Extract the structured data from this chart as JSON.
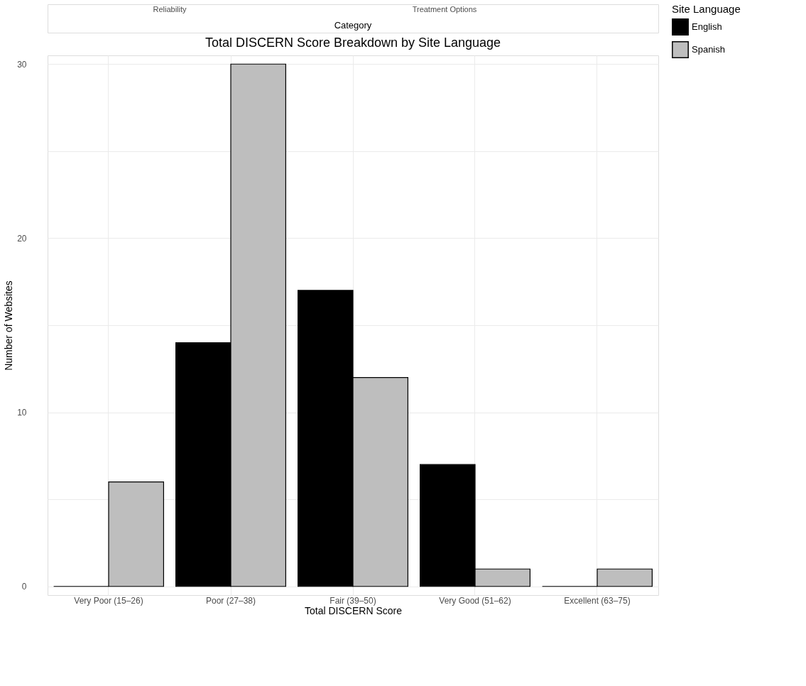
{
  "chart_data": {
    "type": "bar",
    "title": "Total DISCERN Score Breakdown by Site Language",
    "xlabel": "Total DISCERN Score",
    "ylabel": "Number of Websites",
    "legend_title": "Site Language",
    "annotations": [
      "Reliability",
      "Treatment Options",
      "Category"
    ],
    "categories": [
      "Very Poor (15–26)",
      "Poor (27–38)",
      "Fair (39–50)",
      "Very Good (51–62)",
      "Excellent (63–75)"
    ],
    "series": [
      {
        "name": "English",
        "color": "#000000",
        "values": [
          0,
          14,
          17,
          7,
          0
        ]
      },
      {
        "name": "Spanish",
        "color": "#bebebe",
        "values": [
          6,
          30,
          12,
          1,
          1
        ]
      }
    ],
    "ylim": [
      -0.5,
      30.5
    ],
    "yticks": [
      0,
      {
        "value": 5,
        "label": null
      },
      10,
      {
        "value": 15,
        "label": null
      },
      20,
      {
        "value": 25,
        "label": null
      },
      30
    ],
    "grid": true,
    "legend": "right"
  }
}
